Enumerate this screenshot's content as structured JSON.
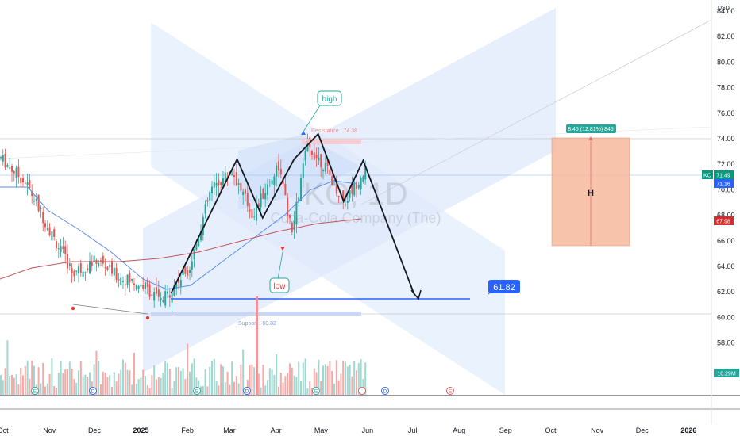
{
  "chart_data": {
    "type": "candlestick",
    "symbol_watermark": "KO, 1D",
    "company_watermark": "Coca-Cola Company (The)",
    "currency": "USD",
    "ylim": [
      58,
      85
    ],
    "y_ticks": [
      "84.00",
      "82.00",
      "80.00",
      "78.00",
      "76.00",
      "74.00",
      "72.00",
      "70.00",
      "68.00",
      "66.00",
      "64.00",
      "62.00",
      "60.00",
      "58.00"
    ],
    "x_ticks": [
      "Oct",
      "Nov",
      "Dec",
      "2025",
      "Feb",
      "Mar",
      "Apr",
      "May",
      "Jun",
      "Jul",
      "Aug",
      "Sep",
      "Oct",
      "Nov",
      "Dec",
      "2026"
    ],
    "price_labels": [
      {
        "text": "KO",
        "value": 71.49,
        "color": "#089981"
      },
      {
        "text": "71.49",
        "value": 71.49,
        "color": "#089981"
      },
      {
        "text": "71.16",
        "value": 71.16,
        "color": "#2962ff"
      },
      {
        "text": "67.98",
        "value": 67.98,
        "color": "#d32f2f"
      }
    ],
    "annotations": {
      "high_label": "high",
      "low_label": "low",
      "resistance_label": "Resistance : 74.38",
      "support_label": "Support : 60.82",
      "target_label": "61.82",
      "measure_label": "8.45 (12.81%) 845",
      "box_label": "H",
      "volume_label": "10.29M"
    },
    "event_markers": [
      "E",
      "D",
      "E",
      "D",
      "E",
      "D",
      "E"
    ],
    "series": [
      {
        "name": "close",
        "x": [
          "2024-09-28",
          "2024-10-15",
          "2024-11-01",
          "2024-11-15",
          "2024-12-01",
          "2024-12-15",
          "2025-01-01",
          "2025-01-13",
          "2025-02-01",
          "2025-02-15",
          "2025-03-01",
          "2025-03-15",
          "2025-04-01",
          "2025-04-10",
          "2025-04-20",
          "2025-05-01",
          "2025-05-15",
          "2025-05-28"
        ],
        "y": [
          72.5,
          70.5,
          66.5,
          63.5,
          64.5,
          63.2,
          62.5,
          61.2,
          64.0,
          70.0,
          71.5,
          68.0,
          72.0,
          66.5,
          73.5,
          72.0,
          69.0,
          71.5
        ]
      }
    ],
    "pattern_points": [
      {
        "date": "2025-01-20",
        "price": 61.9
      },
      {
        "date": "2025-03-05",
        "price": 72.4
      },
      {
        "date": "2025-03-22",
        "price": 67.8
      },
      {
        "date": "2025-04-12",
        "price": 72.4
      },
      {
        "date": "2025-04-28",
        "price": 74.38
      },
      {
        "date": "2025-05-15",
        "price": 69.1
      },
      {
        "date": "2025-05-28",
        "price": 72.3
      },
      {
        "date": "2025-07-01",
        "price": 61.82
      }
    ]
  }
}
